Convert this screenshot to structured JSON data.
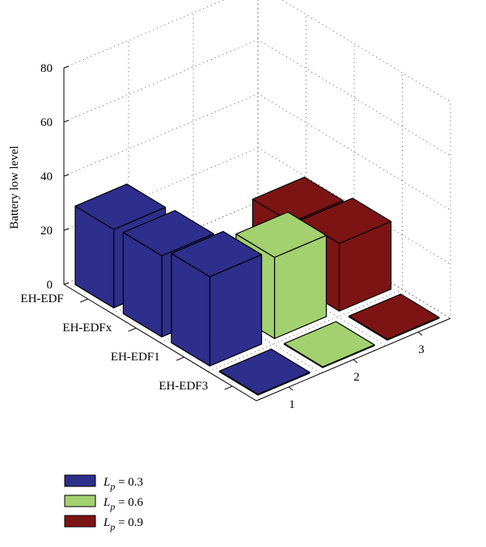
{
  "chart_data": {
    "type": "bar",
    "subtype": "3d-bar",
    "ylabel": "Battery low level",
    "ylim": [
      0,
      80
    ],
    "yticks": [
      "0",
      "20",
      "40",
      "60",
      "80"
    ],
    "categories": [
      "EH-EDF",
      "EH-EDFx",
      "EH-EDF1",
      "EH-EDF3"
    ],
    "depth_ticks": [
      "1",
      "2",
      "3"
    ],
    "grid": true,
    "legend_position": "bottom-left",
    "series": [
      {
        "name": "L_p = 0.3",
        "legend_symbol": "L",
        "legend_sub": "p",
        "legend_value": " = 0.3",
        "color": "#2e2e8c",
        "depth": "1",
        "values": [
          29,
          30,
          33,
          0
        ]
      },
      {
        "name": "L_p = 0.6",
        "legend_symbol": "L",
        "legend_sub": "p",
        "legend_value": " = 0.6",
        "color": "#a3d16f",
        "depth": "2",
        "values": [
          null,
          null,
          30,
          0
        ]
      },
      {
        "name": "L_p = 0.9",
        "legend_symbol": "L",
        "legend_sub": "p",
        "legend_value": " = 0.9",
        "color": "#7d1414",
        "depth": "3",
        "values": [
          null,
          22,
          25,
          0
        ]
      }
    ]
  }
}
